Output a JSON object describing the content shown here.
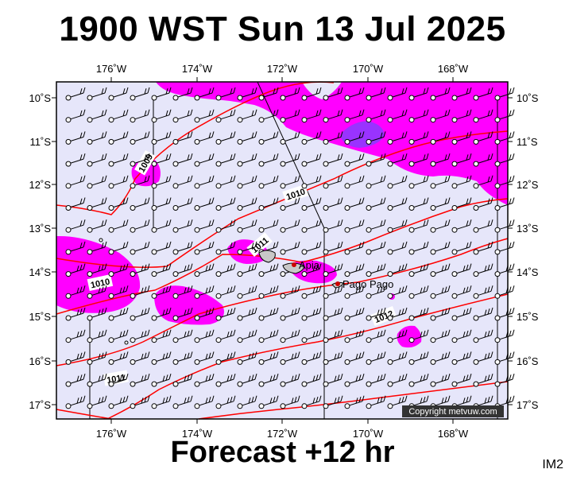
{
  "title": "1900 WST Sun 13 Jul 2025",
  "footer": "Forecast +12 hr",
  "image_code": "IM2",
  "copyright": "Copyright metvuw.com",
  "map": {
    "lon_labels": [
      "176˚W",
      "174˚W",
      "172˚W",
      "170˚W",
      "168˚W"
    ],
    "lat_labels": [
      "10˚S",
      "11˚S",
      "12˚S",
      "13˚S",
      "14˚S",
      "15˚S",
      "16˚S",
      "17˚S"
    ],
    "isobar_labels": [
      "1009",
      "1010",
      "1010",
      "1011",
      "1011",
      "1012"
    ],
    "places": [
      "Apia",
      "Pago Pago"
    ]
  },
  "colors": {
    "ocean": "#e6e6fa",
    "rain_light": "#ff00ff",
    "rain_heavy": "#9933ff",
    "isobar": "#ff0000",
    "grid": "#000000"
  }
}
